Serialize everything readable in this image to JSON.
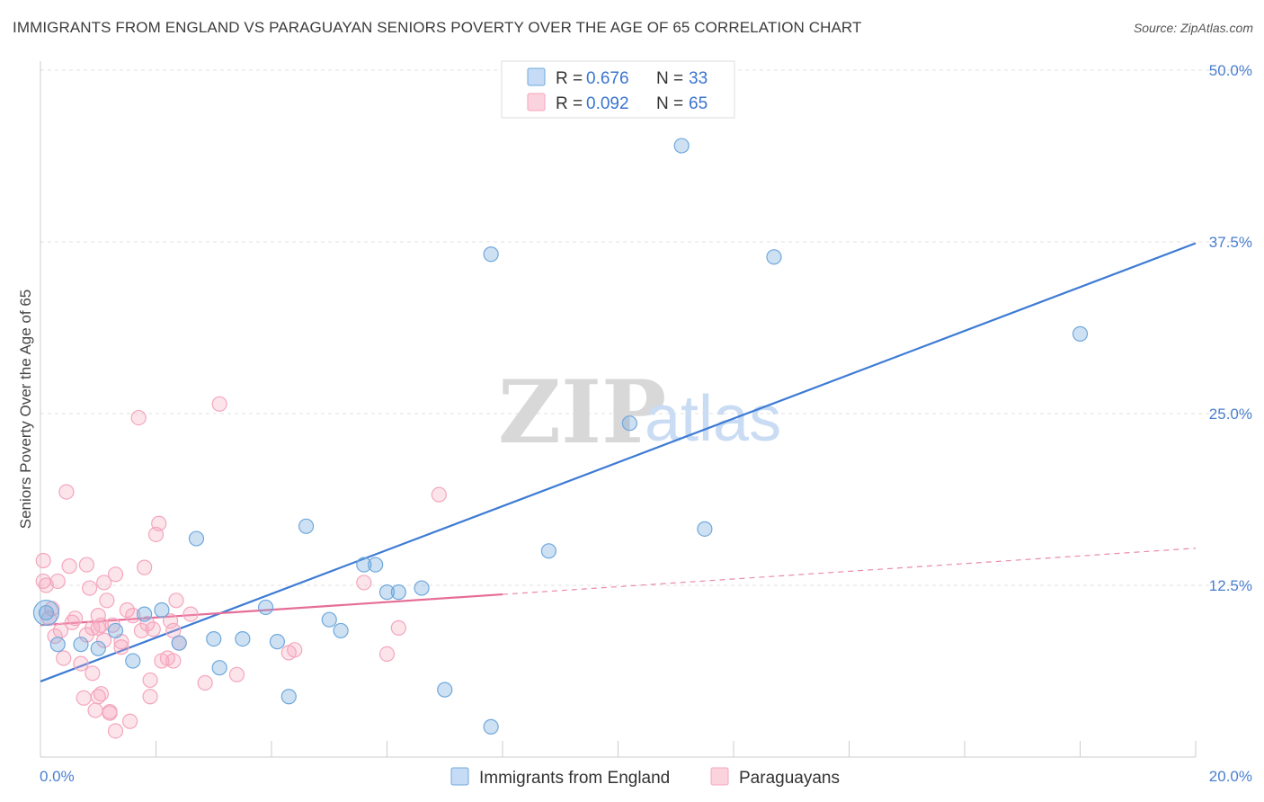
{
  "title": "IMMIGRANTS FROM ENGLAND VS PARAGUAYAN SENIORS POVERTY OVER THE AGE OF 65 CORRELATION CHART",
  "source": "Source: ZipAtlas.com",
  "watermark": {
    "zip": "ZIP",
    "atlas": "atlas"
  },
  "chart_data": {
    "type": "scatter",
    "xlabel": "",
    "ylabel": "Seniors Poverty Over the Age of 65",
    "xlim": [
      0,
      20
    ],
    "ylim": [
      0,
      50
    ],
    "x_tick_labels": {
      "min": "0.0%",
      "max": "20.0%"
    },
    "y_ticks": [
      {
        "value": 12.5,
        "label": "12.5%"
      },
      {
        "value": 25,
        "label": "25.0%"
      },
      {
        "value": 37.5,
        "label": "37.5%"
      },
      {
        "value": 50,
        "label": "50.0%"
      }
    ],
    "legend": [
      {
        "r_label": "R =",
        "r_value": "0.676",
        "n_label": "N =",
        "n_value": "33",
        "color": "#6fa8dc"
      },
      {
        "r_label": "R =",
        "r_value": "0.092",
        "n_label": "N =",
        "n_value": "65",
        "color": "#f4a6bd"
      }
    ],
    "series": [
      {
        "name": "Immigrants from England",
        "color": "#6fa8dc",
        "line_color": "#3d7bd4",
        "trend": {
          "x0": 0,
          "y0": 5.5,
          "x1": 20,
          "y1": 37.4,
          "dash_from": null
        },
        "points": [
          [
            0.1,
            10.5
          ],
          [
            0.3,
            8.2
          ],
          [
            0.7,
            8.2
          ],
          [
            1.0,
            7.9
          ],
          [
            1.3,
            9.2
          ],
          [
            1.6,
            7.0
          ],
          [
            1.8,
            10.4
          ],
          [
            2.1,
            10.7
          ],
          [
            2.4,
            8.3
          ],
          [
            2.7,
            15.9
          ],
          [
            3.0,
            8.6
          ],
          [
            3.1,
            6.5
          ],
          [
            3.5,
            8.6
          ],
          [
            3.9,
            10.9
          ],
          [
            4.1,
            8.4
          ],
          [
            4.3,
            4.4
          ],
          [
            4.6,
            16.8
          ],
          [
            5.0,
            10.0
          ],
          [
            5.2,
            9.2
          ],
          [
            5.6,
            14.0
          ],
          [
            5.8,
            14.0
          ],
          [
            6.0,
            12.0
          ],
          [
            6.2,
            12.0
          ],
          [
            6.6,
            12.3
          ],
          [
            7.0,
            4.9
          ],
          [
            7.8,
            2.2
          ],
          [
            7.8,
            36.6
          ],
          [
            8.8,
            15.0
          ],
          [
            10.2,
            24.3
          ],
          [
            11.1,
            44.5
          ],
          [
            11.5,
            16.6
          ],
          [
            12.7,
            36.4
          ],
          [
            18.0,
            30.8
          ]
        ]
      },
      {
        "name": "Paraguayans",
        "color": "#f4a6bd",
        "line_color": "#e66d97",
        "trend": {
          "x0": 0,
          "y0": 9.6,
          "x1": 20,
          "y1": 15.2,
          "dash_from": 8.0
        },
        "points": [
          [
            0.05,
            14.3
          ],
          [
            0.05,
            12.8
          ],
          [
            0.1,
            12.5
          ],
          [
            0.15,
            10.1
          ],
          [
            0.2,
            10.8
          ],
          [
            0.25,
            8.8
          ],
          [
            0.3,
            12.8
          ],
          [
            0.35,
            9.2
          ],
          [
            0.4,
            7.2
          ],
          [
            0.45,
            19.3
          ],
          [
            0.5,
            13.9
          ],
          [
            0.55,
            9.8
          ],
          [
            0.6,
            10.1
          ],
          [
            0.7,
            6.8
          ],
          [
            0.75,
            4.3
          ],
          [
            0.8,
            8.9
          ],
          [
            0.8,
            14.0
          ],
          [
            0.85,
            12.3
          ],
          [
            0.9,
            6.1
          ],
          [
            0.9,
            9.4
          ],
          [
            0.95,
            3.4
          ],
          [
            1.0,
            4.4
          ],
          [
            1.0,
            10.3
          ],
          [
            1.05,
            4.6
          ],
          [
            1.05,
            9.6
          ],
          [
            1.1,
            8.5
          ],
          [
            1.1,
            12.7
          ],
          [
            1.15,
            11.4
          ],
          [
            1.2,
            3.2
          ],
          [
            1.2,
            3.3
          ],
          [
            1.25,
            9.6
          ],
          [
            1.3,
            1.9
          ],
          [
            1.3,
            13.3
          ],
          [
            1.4,
            8.0
          ],
          [
            1.5,
            10.7
          ],
          [
            1.55,
            2.6
          ],
          [
            1.6,
            10.3
          ],
          [
            1.7,
            24.7
          ],
          [
            1.75,
            9.2
          ],
          [
            1.8,
            13.8
          ],
          [
            1.85,
            9.7
          ],
          [
            1.9,
            5.6
          ],
          [
            1.9,
            4.4
          ],
          [
            1.95,
            9.3
          ],
          [
            2.0,
            16.2
          ],
          [
            2.05,
            17.0
          ],
          [
            2.1,
            7.0
          ],
          [
            2.2,
            7.2
          ],
          [
            2.25,
            9.9
          ],
          [
            2.3,
            7.0
          ],
          [
            2.3,
            9.2
          ],
          [
            2.35,
            11.4
          ],
          [
            2.4,
            8.3
          ],
          [
            2.6,
            10.4
          ],
          [
            2.85,
            5.4
          ],
          [
            3.1,
            25.7
          ],
          [
            3.4,
            6.0
          ],
          [
            4.3,
            7.6
          ],
          [
            4.4,
            7.8
          ],
          [
            5.6,
            12.7
          ],
          [
            6.0,
            7.5
          ],
          [
            6.2,
            9.4
          ],
          [
            6.9,
            19.1
          ],
          [
            1.0,
            9.4
          ],
          [
            1.4,
            8.4
          ]
        ]
      }
    ]
  }
}
